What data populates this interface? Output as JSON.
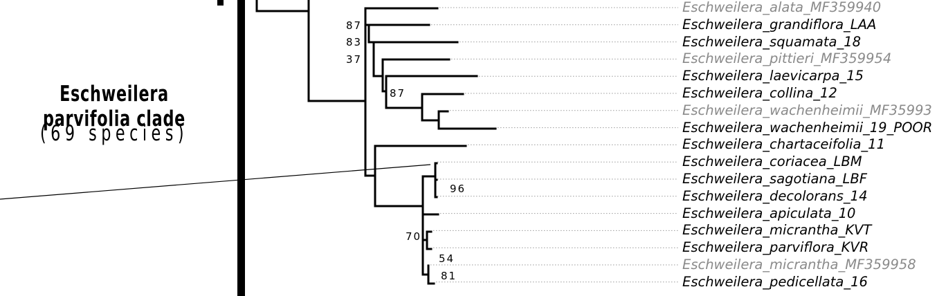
{
  "clade": {
    "title": "Eschweilera parvifolia clade",
    "species_count": "(69 species)"
  },
  "taxa": [
    {
      "label": "Eschweilera_alata_MF359940",
      "reference": true
    },
    {
      "label": "Eschweilera_grandiflora_LAA",
      "reference": false
    },
    {
      "label": "Eschweilera_squamata_18",
      "reference": false
    },
    {
      "label": "Eschweilera_pittieri_MF359954",
      "reference": true
    },
    {
      "label": "Eschweilera_laevicarpa_15",
      "reference": false
    },
    {
      "label": "Eschweilera_collina_12",
      "reference": false
    },
    {
      "label": "Eschweilera_wachenheimii_MF35993",
      "reference": true
    },
    {
      "label": "Eschweilera_wachenheimii_19_POOR",
      "reference": false
    },
    {
      "label": "Eschweilera_chartaceifolia_11",
      "reference": false
    },
    {
      "label": "Eschweilera_coriacea_LBM",
      "reference": false
    },
    {
      "label": "Eschweilera_sagotiana_LBF",
      "reference": false
    },
    {
      "label": "Eschweilera_decolorans_14",
      "reference": false
    },
    {
      "label": "Eschweilera_apiculata_10",
      "reference": false
    },
    {
      "label": "Eschweilera_micrantha_KVT",
      "reference": false
    },
    {
      "label": "Eschweilera_parviflora_KVR",
      "reference": false
    },
    {
      "label": "Eschweilera_micrantha_MF359958",
      "reference": true
    },
    {
      "label": "Eschweilera_pedicellata_16",
      "reference": false
    }
  ],
  "support_values": [
    "87",
    "83",
    "37",
    "87",
    "96",
    "70",
    "54",
    "81"
  ],
  "colors": {
    "branch": "#000000",
    "reference_taxon": "#8a8a8a",
    "leader_line": "#9a9a9a"
  }
}
